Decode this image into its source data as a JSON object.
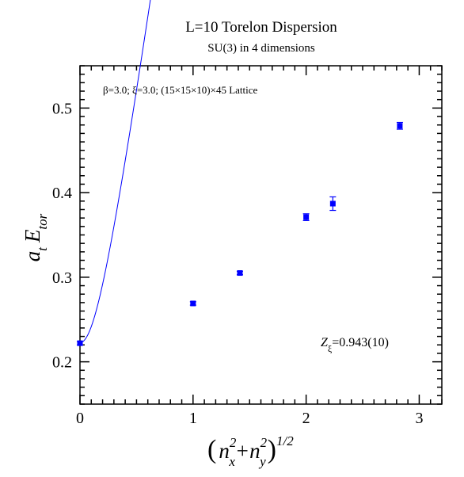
{
  "chart_data": {
    "type": "scatter",
    "title": "L=10 Torelon Dispersion",
    "subtitle": "SU(3) in 4 dimensions",
    "annotation": "β=3.0;  ξ=3.0;  (15×15×10)×45 Lattice",
    "fit_label": {
      "main": "Z",
      "sub": "ξ",
      "value": "=0.943(10)"
    },
    "xlabel": {
      "open": "(",
      "n1": "n",
      "n1_sub": "x",
      "n1_sup": "2",
      "plus": "+",
      "n2": "n",
      "n2_sub": "y",
      "n2_sup": "2",
      "close": ")",
      "power": "1/2"
    },
    "ylabel": {
      "a": "a",
      "a_sub": "t",
      "E": "E",
      "E_sub": "tor"
    },
    "xlim": [
      0,
      3.2
    ],
    "ylim": [
      0.15,
      0.55
    ],
    "xticks": [
      "0",
      "1",
      "2",
      "3"
    ],
    "yticks": [
      "0.2",
      "0.3",
      "0.4",
      "0.5"
    ],
    "marker_color": "#0000ff",
    "curve_color": "#0000ff",
    "series": [
      {
        "x": [
          0,
          1,
          1.4142,
          2,
          2.2361,
          2.8284
        ],
        "y": [
          0.222,
          0.269,
          0.305,
          0.371,
          0.387,
          0.479
        ],
        "yerr": [
          0.002,
          0.002,
          0.002,
          0.004,
          0.008,
          0.004
        ]
      }
    ],
    "fit": {
      "a0": 0.2225,
      "z": 0.943
    }
  }
}
